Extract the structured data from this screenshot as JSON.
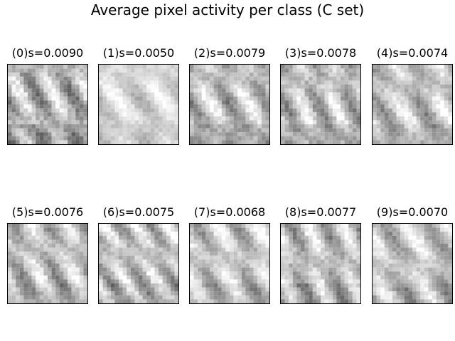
{
  "title": "Average pixel activity per class (C set)",
  "chart_data": {
    "type": "heatmap",
    "title": "Average pixel activity per class (C set)",
    "colormap": "gray_r",
    "grid": false,
    "panels": [
      {
        "label": "(0)s=0.0090",
        "class": 0,
        "s": 0.009
      },
      {
        "label": "(1)s=0.0050",
        "class": 1,
        "s": 0.005
      },
      {
        "label": "(2)s=0.0079",
        "class": 2,
        "s": 0.0079
      },
      {
        "label": "(3)s=0.0078",
        "class": 3,
        "s": 0.0078
      },
      {
        "label": "(4)s=0.0074",
        "class": 4,
        "s": 0.0074
      },
      {
        "label": "(5)s=0.0076",
        "class": 5,
        "s": 0.0076
      },
      {
        "label": "(6)s=0.0075",
        "class": 6,
        "s": 0.0075
      },
      {
        "label": "(7)s=0.0068",
        "class": 7,
        "s": 0.0068
      },
      {
        "label": "(8)s=0.0077",
        "class": 8,
        "s": 0.0077
      },
      {
        "label": "(9)s=0.0070",
        "class": 9,
        "s": 0.007
      }
    ]
  }
}
